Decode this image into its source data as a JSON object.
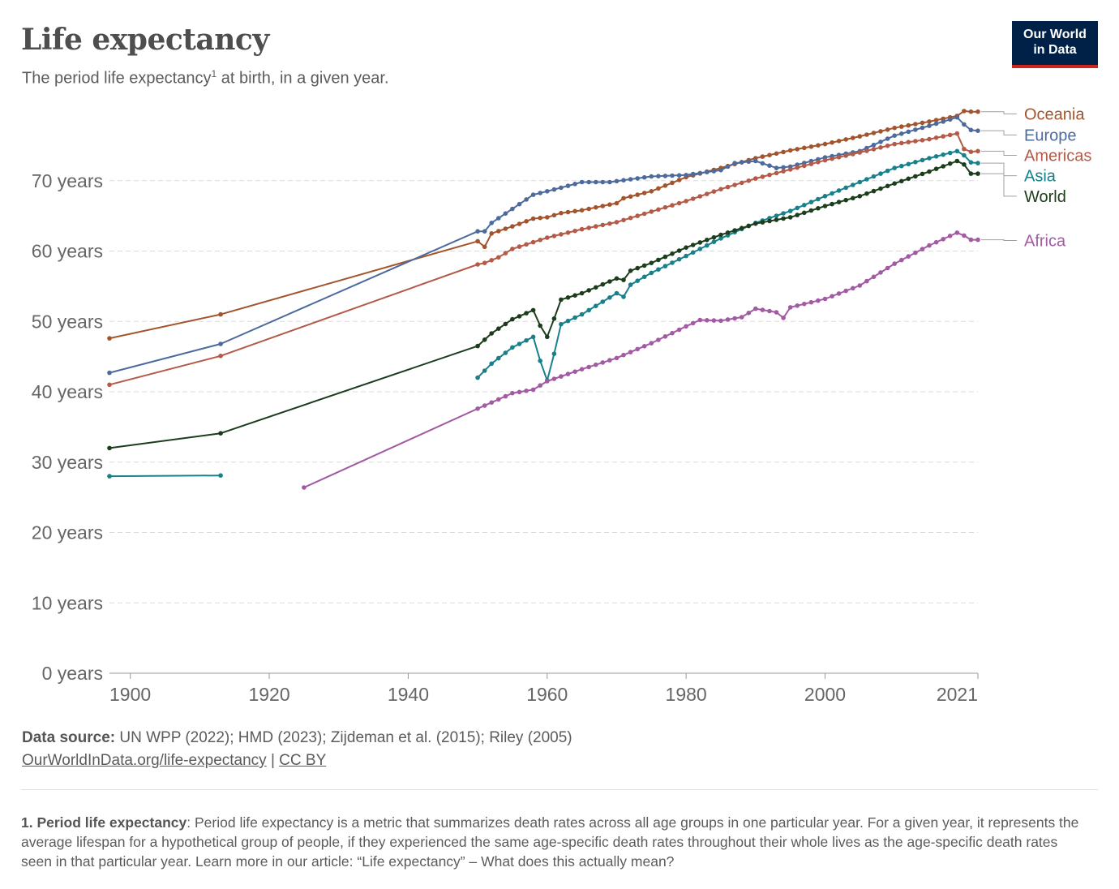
{
  "header": {
    "title": "Life expectancy",
    "subtitle_pre": "The period life expectancy",
    "subtitle_sup": "1",
    "subtitle_post": " at birth, in a given year."
  },
  "logo": {
    "line1": "Our World",
    "line2": "in Data",
    "bg": "#002147",
    "accent": "#ce261e"
  },
  "footer": {
    "source_label": "Data source:",
    "source_text": " UN WPP (2022); HMD (2023); Zijdeman et al. (2015); Riley (2005)",
    "link_text": "OurWorldInData.org/life-expectancy",
    "separator": " | ",
    "license_text": "CC BY",
    "footnote_label": "1. Period life expectancy",
    "footnote_text": ": Period life expectancy is a metric that summarizes death rates across all age groups in one particular year. For a given year, it represents the average lifespan for a hypothetical group of people, if they experienced the same age-specific death rates throughout their whole lives as the age-specific death rates seen in that particular year. Learn more in our article: “Life expectancy” – What does this actually mean?"
  },
  "chart_data": {
    "type": "line",
    "title": "Life expectancy",
    "xlim": [
      1897,
      2022
    ],
    "ylim": [
      0,
      80
    ],
    "grid": true,
    "y_ticks": [
      0,
      10,
      20,
      30,
      40,
      50,
      60,
      70
    ],
    "y_tick_labels": [
      "0 years",
      "10 years",
      "20 years",
      "30 years",
      "40 years",
      "50 years",
      "60 years",
      "70 years"
    ],
    "x_ticks": [
      1900,
      1920,
      1940,
      1960,
      1980,
      2000,
      2021
    ],
    "x_tick_labels": [
      "1900",
      "1920",
      "1940",
      "1960",
      "1980",
      "2000",
      "2021"
    ],
    "legend": "right-end labels",
    "series": [
      {
        "name": "Oceania",
        "color": "#a2552c",
        "label_y": 79.5,
        "x": [
          1897,
          1913,
          1950,
          1951,
          1952,
          1955,
          1958,
          1960,
          1962,
          1965,
          1970,
          1971,
          1975,
          1980,
          1985,
          1990,
          1995,
          2000,
          2005,
          2010,
          2015,
          2019,
          2020,
          2021,
          2022
        ],
        "y": [
          47.6,
          51.0,
          61.4,
          60.6,
          62.5,
          63.5,
          64.6,
          64.8,
          65.4,
          65.8,
          66.8,
          67.5,
          68.5,
          70.5,
          71.8,
          73.2,
          74.3,
          75.2,
          76.3,
          77.5,
          78.4,
          79.2,
          79.9,
          79.8,
          79.8
        ]
      },
      {
        "name": "Europe",
        "color": "#4c6a9c",
        "label_y": 76.5,
        "x": [
          1897,
          1913,
          1950,
          1951,
          1952,
          1955,
          1958,
          1960,
          1962,
          1965,
          1969,
          1975,
          1980,
          1985,
          1987,
          1990,
          1993,
          1995,
          2000,
          2005,
          2010,
          2015,
          2019,
          2020,
          2021,
          2022
        ],
        "y": [
          42.7,
          46.8,
          62.8,
          62.8,
          64.0,
          66.0,
          68.0,
          68.5,
          69.0,
          69.8,
          69.8,
          70.6,
          70.8,
          71.5,
          72.5,
          72.8,
          71.8,
          72.0,
          73.3,
          74.2,
          76.4,
          77.8,
          79.0,
          78.0,
          77.2,
          77.1
        ]
      },
      {
        "name": "Americas",
        "color": "#b45a48",
        "label_y": 73.6,
        "x": [
          1897,
          1913,
          1950,
          1951,
          1953,
          1955,
          1960,
          1965,
          1970,
          1975,
          1980,
          1985,
          1990,
          1995,
          2000,
          2005,
          2010,
          2015,
          2019,
          2020,
          2021,
          2022
        ],
        "y": [
          41.0,
          45.1,
          58.1,
          58.3,
          59.1,
          60.3,
          61.9,
          63.1,
          64.1,
          65.6,
          67.1,
          68.8,
          70.3,
          71.6,
          72.9,
          74.0,
          75.2,
          75.9,
          76.7,
          74.5,
          74.1,
          74.2
        ]
      },
      {
        "name": "Asia",
        "color": "#17808a",
        "label_y": 70.7,
        "x": [
          1897,
          1913,
          1925,
          1950,
          1952,
          1955,
          1958,
          1959,
          1960,
          1961,
          1962,
          1965,
          1970,
          1971,
          1972,
          1975,
          1980,
          1985,
          1990,
          1995,
          2000,
          2005,
          2010,
          2015,
          2019,
          2020,
          2021,
          2022
        ],
        "y": [
          28.0,
          28.1,
          null,
          42.0,
          44.0,
          46.3,
          47.8,
          44.4,
          41.6,
          45.4,
          49.6,
          51.0,
          54.0,
          53.5,
          55.2,
          56.9,
          59.3,
          61.8,
          64.0,
          65.7,
          67.8,
          69.8,
          71.8,
          73.2,
          74.2,
          73.6,
          72.6,
          72.5
        ]
      },
      {
        "name": "World",
        "color": "#1b3d1b",
        "label_y": 67.8,
        "x": [
          1897,
          1913,
          1950,
          1952,
          1955,
          1958,
          1959,
          1960,
          1961,
          1962,
          1965,
          1970,
          1971,
          1972,
          1975,
          1980,
          1985,
          1990,
          1995,
          2000,
          2005,
          2010,
          2015,
          2019,
          2020,
          2021,
          2022
        ],
        "y": [
          32.0,
          34.1,
          46.5,
          48.3,
          50.3,
          51.6,
          49.4,
          47.8,
          50.4,
          53.1,
          54.0,
          56.1,
          55.9,
          57.2,
          58.3,
          60.5,
          62.3,
          63.9,
          64.8,
          66.4,
          67.8,
          69.6,
          71.3,
          72.8,
          72.3,
          71.0,
          71.0
        ]
      },
      {
        "name": "Africa",
        "color": "#a25ba3",
        "label_y": 61.5,
        "x": [
          1925,
          1950,
          1955,
          1958,
          1960,
          1965,
          1970,
          1975,
          1980,
          1982,
          1985,
          1988,
          1990,
          1993,
          1994,
          1995,
          2000,
          2005,
          2010,
          2015,
          2019,
          2020,
          2021,
          2022
        ],
        "y": [
          26.4,
          37.6,
          39.8,
          40.3,
          41.5,
          43.2,
          44.8,
          46.9,
          49.3,
          50.2,
          50.1,
          50.6,
          51.8,
          51.3,
          50.5,
          52.0,
          53.2,
          55.1,
          58.2,
          60.8,
          62.6,
          62.2,
          61.6,
          61.6
        ]
      }
    ]
  }
}
